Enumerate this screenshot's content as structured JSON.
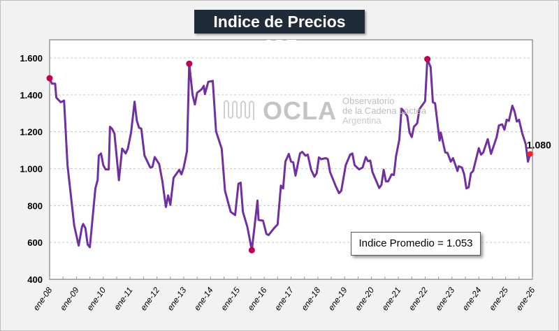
{
  "chart_data": {
    "type": "line",
    "title": "Indice de Precios GDT",
    "xlabel": "",
    "ylabel": "",
    "ylim": [
      400,
      1600
    ],
    "yticks": [
      "400",
      "600",
      "800",
      "1.000",
      "1.200",
      "1.400",
      "1.600"
    ],
    "ytick_values": [
      400,
      600,
      800,
      1000,
      1200,
      1400,
      1600
    ],
    "xticks": [
      "ene-08",
      "ene-09",
      "ene-10",
      "ene-11",
      "ene-12",
      "ene-13",
      "ene-14",
      "ene-15",
      "ene-16",
      "ene-17",
      "ene-18",
      "ene-19",
      "ene-20",
      "ene-21",
      "ene-22",
      "ene-23",
      "ene-24",
      "ene-25",
      "ene-26"
    ],
    "xlim": [
      "2008-01-01",
      "2026-01-01"
    ],
    "grid": true,
    "line_color": "#7030a0",
    "marker_color": "#c00050",
    "last_marker_color": "#ff2020",
    "last_value_label": "1.080",
    "annotation": "Indice Promedio  = 1.053",
    "highlighted_points": [
      [
        "2008-01-01",
        1490
      ],
      [
        "2013-03-15",
        1569
      ],
      [
        "2015-07-15",
        558
      ],
      [
        "2022-02-01",
        1594
      ]
    ],
    "points": [
      [
        "2008-01-01",
        1490
      ],
      [
        "2008-02-01",
        1461
      ],
      [
        "2008-03-15",
        1461
      ],
      [
        "2008-04-01",
        1385
      ],
      [
        "2008-06-01",
        1360
      ],
      [
        "2008-07-15",
        1369
      ],
      [
        "2008-09-01",
        1019
      ],
      [
        "2008-12-01",
        692
      ],
      [
        "2009-02-01",
        583
      ],
      [
        "2009-03-15",
        684
      ],
      [
        "2009-04-01",
        700
      ],
      [
        "2009-05-01",
        678
      ],
      [
        "2009-06-01",
        589
      ],
      [
        "2009-07-01",
        574
      ],
      [
        "2009-09-15",
        893
      ],
      [
        "2009-10-15",
        938
      ],
      [
        "2009-11-01",
        1071
      ],
      [
        "2009-12-01",
        1082
      ],
      [
        "2010-01-01",
        1019
      ],
      [
        "2010-02-01",
        996
      ],
      [
        "2010-03-15",
        996
      ],
      [
        "2010-04-01",
        1227
      ],
      [
        "2010-05-01",
        1215
      ],
      [
        "2010-06-01",
        1190
      ],
      [
        "2010-08-01",
        937
      ],
      [
        "2010-09-15",
        1109
      ],
      [
        "2010-11-01",
        1082
      ],
      [
        "2010-12-01",
        1109
      ],
      [
        "2011-01-15",
        1196
      ],
      [
        "2011-03-01",
        1363
      ],
      [
        "2011-04-01",
        1260
      ],
      [
        "2011-05-01",
        1222
      ],
      [
        "2011-06-01",
        1217
      ],
      [
        "2011-07-15",
        1071
      ],
      [
        "2011-10-01",
        1006
      ],
      [
        "2011-11-01",
        1010
      ],
      [
        "2011-12-01",
        1063
      ],
      [
        "2012-02-01",
        1025
      ],
      [
        "2012-03-15",
        931
      ],
      [
        "2012-05-01",
        792
      ],
      [
        "2012-06-01",
        855
      ],
      [
        "2012-07-01",
        804
      ],
      [
        "2012-08-15",
        950
      ],
      [
        "2012-11-01",
        994
      ],
      [
        "2012-12-01",
        969
      ],
      [
        "2013-01-01",
        1006
      ],
      [
        "2013-02-15",
        1095
      ],
      [
        "2013-03-15",
        1569
      ],
      [
        "2013-05-01",
        1398
      ],
      [
        "2013-06-01",
        1348
      ],
      [
        "2013-07-01",
        1411
      ],
      [
        "2013-09-01",
        1430
      ],
      [
        "2013-10-01",
        1449
      ],
      [
        "2013-10-15",
        1404
      ],
      [
        "2013-12-01",
        1471
      ],
      [
        "2014-02-01",
        1476
      ],
      [
        "2014-03-15",
        1202
      ],
      [
        "2014-06-01",
        1108
      ],
      [
        "2014-07-15",
        880
      ],
      [
        "2014-10-01",
        766
      ],
      [
        "2014-12-01",
        748
      ],
      [
        "2015-01-15",
        918
      ],
      [
        "2015-02-15",
        924
      ],
      [
        "2015-03-15",
        766
      ],
      [
        "2015-05-15",
        684
      ],
      [
        "2015-07-15",
        558
      ],
      [
        "2015-10-01",
        827
      ],
      [
        "2015-10-15",
        722
      ],
      [
        "2015-12-15",
        718
      ],
      [
        "2016-02-01",
        646
      ],
      [
        "2016-03-01",
        640
      ],
      [
        "2016-05-15",
        678
      ],
      [
        "2016-07-01",
        697
      ],
      [
        "2016-08-15",
        908
      ],
      [
        "2016-09-15",
        893
      ],
      [
        "2016-10-15",
        1038
      ],
      [
        "2016-12-01",
        1080
      ],
      [
        "2017-01-01",
        1038
      ],
      [
        "2017-02-01",
        1034
      ],
      [
        "2017-03-01",
        962
      ],
      [
        "2017-05-01",
        1082
      ],
      [
        "2017-06-01",
        1091
      ],
      [
        "2017-07-15",
        1070
      ],
      [
        "2017-08-15",
        1076
      ],
      [
        "2017-10-01",
        994
      ],
      [
        "2017-11-15",
        956
      ],
      [
        "2017-12-15",
        975
      ],
      [
        "2018-01-15",
        1061
      ],
      [
        "2018-02-15",
        1051
      ],
      [
        "2018-04-15",
        1057
      ],
      [
        "2018-05-15",
        1051
      ],
      [
        "2018-06-15",
        981
      ],
      [
        "2018-09-01",
        905
      ],
      [
        "2018-10-15",
        867
      ],
      [
        "2018-11-15",
        880
      ],
      [
        "2019-01-15",
        1019
      ],
      [
        "2019-03-15",
        1076
      ],
      [
        "2019-04-15",
        1082
      ],
      [
        "2019-05-15",
        1019
      ],
      [
        "2019-07-15",
        996
      ],
      [
        "2019-09-01",
        1006
      ],
      [
        "2019-10-15",
        1063
      ],
      [
        "2019-11-15",
        1040
      ],
      [
        "2019-12-15",
        1044
      ],
      [
        "2020-01-15",
        981
      ],
      [
        "2020-04-15",
        895
      ],
      [
        "2020-05-15",
        912
      ],
      [
        "2020-06-15",
        994
      ],
      [
        "2020-07-15",
        931
      ],
      [
        "2020-08-15",
        931
      ],
      [
        "2020-10-01",
        969
      ],
      [
        "2020-11-01",
        966
      ],
      [
        "2020-12-01",
        1070
      ],
      [
        "2021-01-15",
        1158
      ],
      [
        "2021-02-15",
        1325
      ],
      [
        "2021-03-15",
        1312
      ],
      [
        "2021-05-01",
        1284
      ],
      [
        "2021-06-01",
        1196
      ],
      [
        "2021-07-01",
        1171
      ],
      [
        "2021-08-01",
        1227
      ],
      [
        "2021-09-15",
        1246
      ],
      [
        "2021-10-15",
        1322
      ],
      [
        "2022-01-01",
        1366
      ],
      [
        "2022-02-01",
        1594
      ],
      [
        "2022-03-15",
        1550
      ],
      [
        "2022-04-15",
        1360
      ],
      [
        "2022-05-15",
        1354
      ],
      [
        "2022-07-15",
        1152
      ],
      [
        "2022-08-01",
        1196
      ],
      [
        "2022-10-01",
        1088
      ],
      [
        "2022-11-01",
        1085
      ],
      [
        "2022-12-15",
        1038
      ],
      [
        "2023-01-15",
        1057
      ],
      [
        "2023-03-15",
        987
      ],
      [
        "2023-04-01",
        1013
      ],
      [
        "2023-05-15",
        1006
      ],
      [
        "2023-06-15",
        969
      ],
      [
        "2023-07-15",
        893
      ],
      [
        "2023-08-15",
        899
      ],
      [
        "2023-09-15",
        975
      ],
      [
        "2023-10-15",
        987
      ],
      [
        "2024-01-01",
        1111
      ],
      [
        "2024-02-01",
        1076
      ],
      [
        "2024-03-01",
        1088
      ],
      [
        "2024-05-01",
        1160
      ],
      [
        "2024-06-15",
        1080
      ],
      [
        "2024-09-01",
        1171
      ],
      [
        "2024-10-01",
        1234
      ],
      [
        "2024-11-15",
        1240
      ],
      [
        "2024-12-15",
        1211
      ],
      [
        "2025-01-15",
        1265
      ],
      [
        "2025-02-15",
        1259
      ],
      [
        "2025-04-01",
        1341
      ],
      [
        "2025-05-01",
        1310
      ],
      [
        "2025-06-01",
        1255
      ],
      [
        "2025-07-01",
        1265
      ],
      [
        "2025-08-15",
        1190
      ],
      [
        "2025-10-01",
        1133
      ],
      [
        "2025-11-01",
        1038
      ],
      [
        "2025-12-01",
        1080
      ]
    ]
  },
  "watermark": {
    "logo": "OCLA",
    "line1": "Observatorio",
    "line2": "de la Cadena Láctea",
    "line3": "Argentina"
  }
}
